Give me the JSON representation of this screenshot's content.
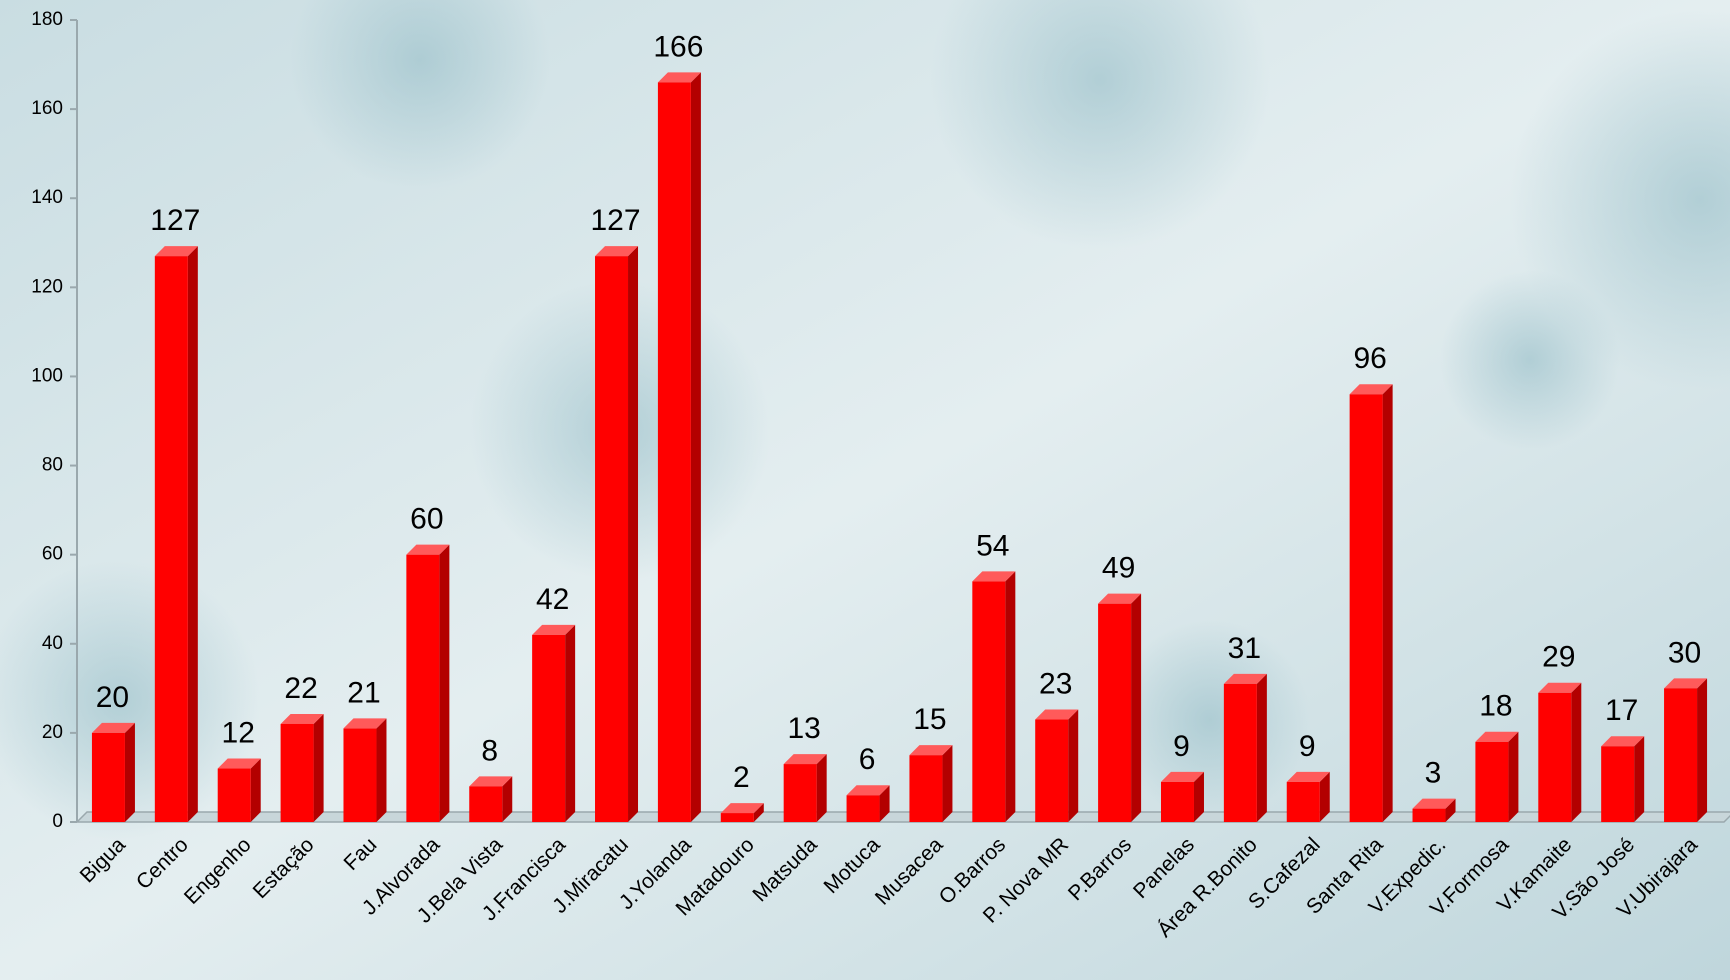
{
  "chart_data": {
    "type": "bar",
    "categories": [
      "Bigua",
      "Centro",
      "Engenho",
      "Estação",
      "Fau",
      "J.Alvorada",
      "J.Bela Vista",
      "J.Francisca",
      "J.Miracatu",
      "J.Yolanda",
      "Matadouro",
      "Matsuda",
      "Motuca",
      "Musacea",
      "O.Barros",
      "P. Nova MR",
      "P.Barros",
      "Panelas",
      "Área R.Bonito",
      "S.Cafezal",
      "Santa Rita",
      "V.Expedic.",
      "V.Formosa",
      "V.Kamaite",
      "V.São José",
      "V.Ubirajara"
    ],
    "values": [
      20,
      127,
      12,
      22,
      21,
      60,
      8,
      42,
      127,
      166,
      2,
      13,
      6,
      15,
      54,
      23,
      49,
      9,
      31,
      9,
      96,
      3,
      18,
      29,
      17,
      30
    ],
    "color": "#ff0000",
    "ylim": [
      0,
      180
    ],
    "yticks": [
      0,
      20,
      40,
      60,
      80,
      100,
      120,
      140,
      160,
      180
    ],
    "grid": false
  }
}
